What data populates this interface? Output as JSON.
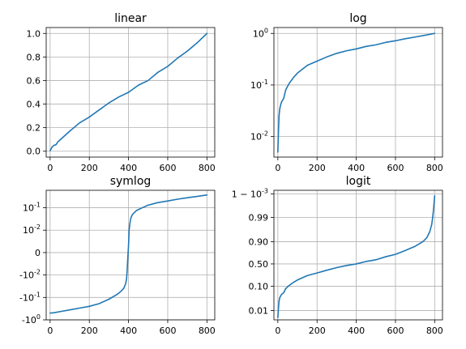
{
  "chart_data": [
    {
      "type": "line",
      "title": "linear",
      "xscale": "linear",
      "yscale": "linear",
      "xlim": [
        -20,
        840
      ],
      "ylim": [
        -0.05,
        1.05
      ],
      "grid": true,
      "xticks": [
        {
          "value": 0,
          "label": "0"
        },
        {
          "value": 200,
          "label": "200"
        },
        {
          "value": 400,
          "label": "400"
        },
        {
          "value": 600,
          "label": "600"
        },
        {
          "value": 800,
          "label": "800"
        }
      ],
      "yticks": [
        {
          "value": 0.0,
          "label": "0.0"
        },
        {
          "value": 0.2,
          "label": "0.2"
        },
        {
          "value": 0.4,
          "label": "0.4"
        },
        {
          "value": 0.6,
          "label": "0.6"
        },
        {
          "value": 0.8,
          "label": "0.8"
        },
        {
          "value": 1.0,
          "label": "1.0"
        }
      ],
      "series": [
        {
          "x": [
            0,
            5,
            10,
            20,
            30,
            40,
            60,
            80,
            100,
            150,
            200,
            250,
            300,
            350,
            400,
            450,
            500,
            550,
            600,
            650,
            700,
            750,
            800
          ],
          "y": [
            0.005,
            0.02,
            0.035,
            0.05,
            0.055,
            0.08,
            0.11,
            0.14,
            0.17,
            0.24,
            0.29,
            0.35,
            0.41,
            0.46,
            0.5,
            0.56,
            0.6,
            0.67,
            0.72,
            0.79,
            0.85,
            0.92,
            1.0
          ]
        }
      ]
    },
    {
      "type": "line",
      "title": "log",
      "xscale": "linear",
      "yscale": "log",
      "xlim": [
        -20,
        840
      ],
      "ylim": [
        0.004,
        1.3
      ],
      "grid": true,
      "xticks": [
        {
          "value": 0,
          "label": "0"
        },
        {
          "value": 200,
          "label": "200"
        },
        {
          "value": 400,
          "label": "400"
        },
        {
          "value": 600,
          "label": "600"
        },
        {
          "value": 800,
          "label": "800"
        }
      ],
      "yticks": [
        {
          "value": 0.01,
          "label": "10^-2"
        },
        {
          "value": 0.1,
          "label": "10^-1"
        },
        {
          "value": 1,
          "label": "10^0"
        }
      ],
      "series": [
        {
          "x": [
            0,
            3,
            6,
            10,
            15,
            20,
            30,
            40,
            50,
            60,
            80,
            100,
            150,
            200,
            250,
            300,
            350,
            400,
            450,
            500,
            550,
            600,
            650,
            700,
            750,
            800
          ],
          "y": [
            0.005,
            0.012,
            0.025,
            0.035,
            0.042,
            0.048,
            0.055,
            0.08,
            0.095,
            0.11,
            0.14,
            0.17,
            0.24,
            0.29,
            0.35,
            0.41,
            0.46,
            0.5,
            0.56,
            0.6,
            0.67,
            0.72,
            0.79,
            0.85,
            0.92,
            1.0
          ]
        }
      ]
    },
    {
      "type": "line",
      "title": "symlog",
      "xscale": "linear",
      "yscale": "symlog",
      "linthresh": 0.01,
      "xlim": [
        -20,
        840
      ],
      "ylim": [
        -1.0,
        0.6
      ],
      "grid": true,
      "xticks": [
        {
          "value": 0,
          "label": "0"
        },
        {
          "value": 200,
          "label": "200"
        },
        {
          "value": 400,
          "label": "400"
        },
        {
          "value": 600,
          "label": "600"
        },
        {
          "value": 800,
          "label": "800"
        }
      ],
      "yticks": [
        {
          "value": -1.0,
          "label": "-10^0"
        },
        {
          "value": -0.1,
          "label": "-10^-1"
        },
        {
          "value": -0.01,
          "label": "-10^-2"
        },
        {
          "value": 0,
          "label": "0"
        },
        {
          "value": 0.01,
          "label": "10^-2"
        },
        {
          "value": 0.1,
          "label": "10^-1"
        }
      ],
      "series": [
        {
          "x": [
            0,
            20,
            50,
            100,
            150,
            200,
            250,
            300,
            340,
            360,
            375,
            385,
            390,
            393,
            396,
            400,
            403,
            407,
            412,
            420,
            440,
            470,
            500,
            550,
            600,
            650,
            700,
            750,
            800
          ],
          "y": [
            -0.5,
            -0.48,
            -0.43,
            -0.36,
            -0.3,
            -0.25,
            -0.19,
            -0.12,
            -0.075,
            -0.055,
            -0.04,
            -0.025,
            -0.015,
            -0.008,
            -0.003,
            0.003,
            0.01,
            0.02,
            0.035,
            0.05,
            0.075,
            0.1,
            0.13,
            0.17,
            0.2,
            0.24,
            0.28,
            0.32,
            0.37
          ]
        }
      ]
    },
    {
      "type": "line",
      "title": "logit",
      "xscale": "linear",
      "yscale": "logit",
      "xlim": [
        -20,
        840
      ],
      "ylim": [
        0.004,
        0.9993
      ],
      "grid": true,
      "xticks": [
        {
          "value": 0,
          "label": "0"
        },
        {
          "value": 200,
          "label": "200"
        },
        {
          "value": 400,
          "label": "400"
        },
        {
          "value": 600,
          "label": "600"
        },
        {
          "value": 800,
          "label": "800"
        }
      ],
      "yticks": [
        {
          "value": 0.01,
          "label": "0.01"
        },
        {
          "value": 0.1,
          "label": "0.10"
        },
        {
          "value": 0.5,
          "label": "0.50"
        },
        {
          "value": 0.9,
          "label": "0.90"
        },
        {
          "value": 0.99,
          "label": "0.99"
        },
        {
          "value": 0.999,
          "label": "1 − 10^-3"
        }
      ],
      "series": [
        {
          "x": [
            0,
            3,
            6,
            10,
            15,
            20,
            30,
            40,
            50,
            60,
            80,
            100,
            150,
            200,
            250,
            300,
            350,
            400,
            450,
            500,
            550,
            600,
            650,
            700,
            740,
            760,
            775,
            785,
            790,
            795,
            800
          ],
          "y": [
            0.005,
            0.012,
            0.025,
            0.035,
            0.042,
            0.048,
            0.055,
            0.08,
            0.095,
            0.11,
            0.14,
            0.17,
            0.24,
            0.29,
            0.35,
            0.41,
            0.46,
            0.5,
            0.56,
            0.6,
            0.67,
            0.72,
            0.79,
            0.85,
            0.9,
            0.93,
            0.96,
            0.98,
            0.99,
            0.996,
            0.9988
          ]
        }
      ]
    }
  ]
}
